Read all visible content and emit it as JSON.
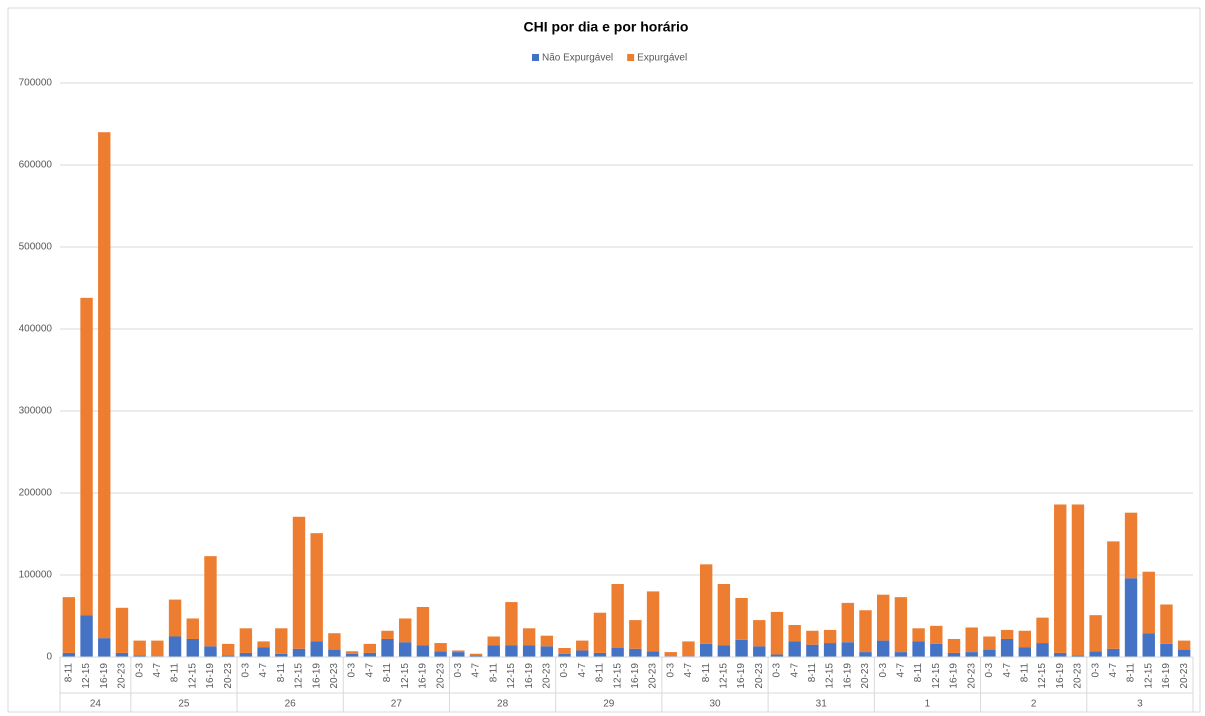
{
  "chart_data": {
    "type": "stacked_bar",
    "title": "CHI por dia e por horário",
    "groups": [
      {
        "label": "24",
        "categories": [
          "8-11",
          "12-15",
          "16-19",
          "20-23"
        ]
      },
      {
        "label": "25",
        "categories": [
          "0-3",
          "4-7",
          "8-11",
          "12-15",
          "16-19",
          "20-23"
        ]
      },
      {
        "label": "26",
        "categories": [
          "0-3",
          "4-7",
          "8-11",
          "12-15",
          "16-19",
          "20-23"
        ]
      },
      {
        "label": "27",
        "categories": [
          "0-3",
          "4-7",
          "8-11",
          "12-15",
          "16-19",
          "20-23"
        ]
      },
      {
        "label": "28",
        "categories": [
          "0-3",
          "4-7",
          "8-11",
          "12-15",
          "16-19",
          "20-23"
        ]
      },
      {
        "label": "29",
        "categories": [
          "0-3",
          "4-7",
          "8-11",
          "12-15",
          "16-19",
          "20-23"
        ]
      },
      {
        "label": "30",
        "categories": [
          "0-3",
          "4-7",
          "8-11",
          "12-15",
          "16-19",
          "20-23"
        ]
      },
      {
        "label": "31",
        "categories": [
          "0-3",
          "4-7",
          "8-11",
          "12-15",
          "16-19",
          "20-23"
        ]
      },
      {
        "label": "1",
        "categories": [
          "0-3",
          "4-7",
          "8-11",
          "12-15",
          "16-19",
          "20-23"
        ]
      },
      {
        "label": "2",
        "categories": [
          "0-3",
          "4-7",
          "8-11",
          "12-15",
          "16-19",
          "20-23"
        ]
      },
      {
        "label": "3",
        "categories": [
          "0-3",
          "4-7",
          "8-11",
          "12-15",
          "16-19",
          "20-23"
        ]
      }
    ],
    "series": [
      {
        "name": "Não Expurgável",
        "color": "#4472c4",
        "values": [
          5000,
          51000,
          23000,
          5000,
          2000,
          1000,
          25000,
          22000,
          13000,
          2000,
          5000,
          12000,
          4000,
          10000,
          19000,
          9000,
          4000,
          5000,
          22000,
          18000,
          14000,
          7000,
          6000,
          2000,
          14000,
          14000,
          14000,
          13000,
          4000,
          8000,
          5000,
          11000,
          10000,
          7000,
          1000,
          1000,
          16000,
          14000,
          21000,
          13000,
          3000,
          19000,
          15000,
          17000,
          18000,
          6000,
          20000,
          6000,
          19000,
          16000,
          5000,
          6000,
          9000,
          22000,
          12000,
          17000,
          5000,
          2000,
          7000,
          10000,
          96000,
          29000,
          16000,
          9000
        ]
      },
      {
        "name": "Expurgável",
        "color": "#ed7d31",
        "values": [
          68000,
          387000,
          617000,
          55000,
          18000,
          19000,
          45000,
          25000,
          110000,
          14000,
          30000,
          7000,
          31000,
          161000,
          132000,
          20000,
          3000,
          11000,
          10000,
          29000,
          47000,
          10000,
          2000,
          2000,
          11000,
          53000,
          21000,
          13000,
          7000,
          12000,
          49000,
          78000,
          35000,
          73000,
          5000,
          18000,
          97000,
          75000,
          51000,
          32000,
          52000,
          20000,
          17000,
          16000,
          48000,
          51000,
          56000,
          67000,
          16000,
          22000,
          17000,
          30000,
          16000,
          11000,
          20000,
          31000,
          181000,
          184000,
          44000,
          131000,
          80000,
          75000,
          48000,
          11000
        ]
      }
    ],
    "ylim": [
      0,
      700000
    ],
    "yticks": [
      0,
      100000,
      200000,
      300000,
      400000,
      500000,
      600000,
      700000
    ],
    "grid": true,
    "legend": "top"
  }
}
